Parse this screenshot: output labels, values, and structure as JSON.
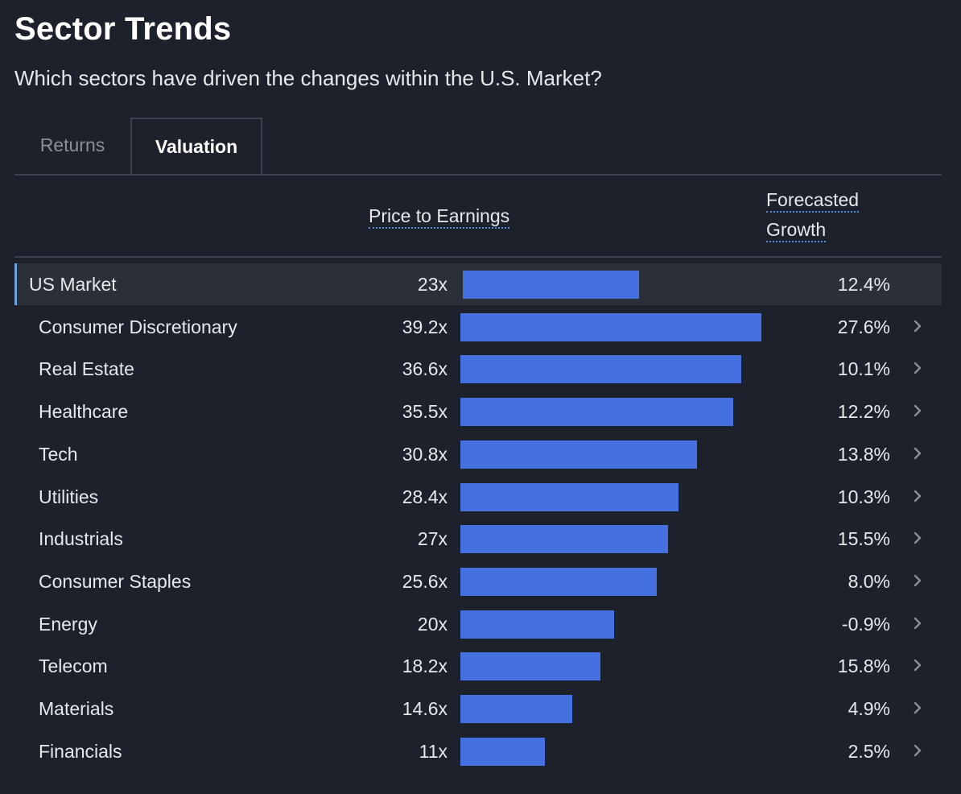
{
  "header": {
    "title": "Sector Trends",
    "subtitle": "Which sectors have driven the changes within the U.S. Market?"
  },
  "tabs": [
    {
      "label": "Returns",
      "active": false
    },
    {
      "label": "Valuation",
      "active": true
    }
  ],
  "columns": {
    "pe_label": "Price to Earnings",
    "growth_label_line1": "Forecasted",
    "growth_label_line2": "Growth"
  },
  "colors": {
    "background": "#1c212b",
    "bar": "#4470e0",
    "highlight_row": "#2a2f38",
    "accent": "#6ca3d8"
  },
  "chart_data": {
    "type": "bar",
    "orientation": "horizontal",
    "title": "Sector Trends",
    "subtitle": "Which sectors have driven the changes within the U.S. Market?",
    "value_label": "Price to Earnings",
    "categories": [
      "US Market",
      "Consumer Discretionary",
      "Real Estate",
      "Healthcare",
      "Tech",
      "Utilities",
      "Industrials",
      "Consumer Staples",
      "Energy",
      "Telecom",
      "Materials",
      "Financials"
    ],
    "values": [
      23,
      39.2,
      36.6,
      35.5,
      30.8,
      28.4,
      27,
      25.6,
      20,
      18.2,
      14.6,
      11
    ],
    "value_labels": [
      "23x",
      "39.2x",
      "36.6x",
      "35.5x",
      "30.8x",
      "28.4x",
      "27x",
      "25.6x",
      "20x",
      "18.2x",
      "14.6x",
      "11x"
    ],
    "growth_labels": [
      "12.4%",
      "27.6%",
      "10.1%",
      "12.2%",
      "13.8%",
      "10.3%",
      "15.5%",
      "8.0%",
      "-0.9%",
      "15.8%",
      "4.9%",
      "2.5%"
    ],
    "xlim": [
      0,
      39.2
    ],
    "grid": false,
    "legend": "none"
  }
}
